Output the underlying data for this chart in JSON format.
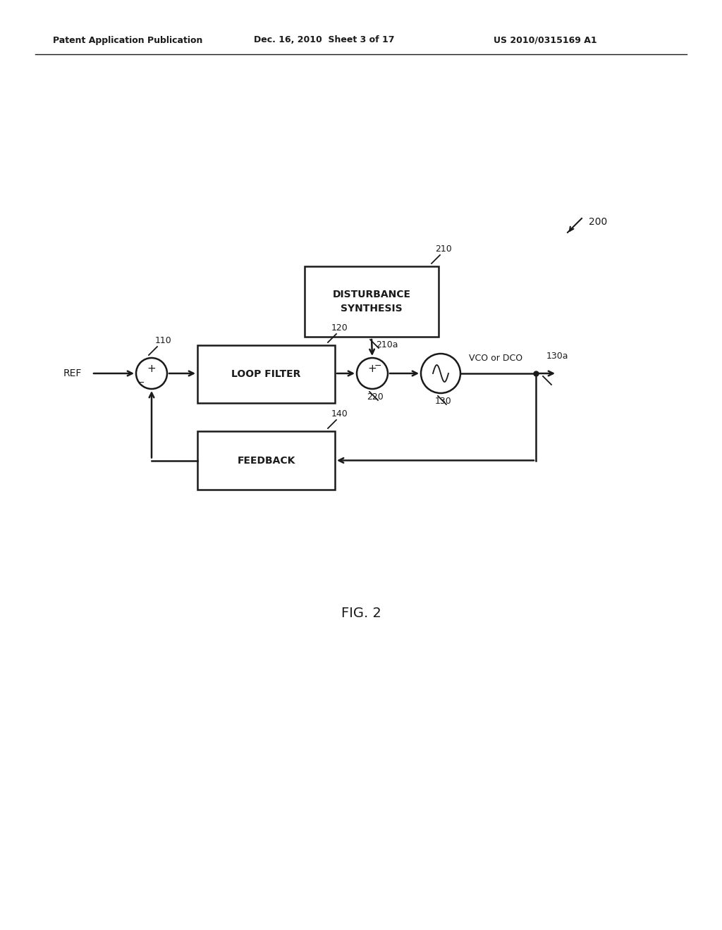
{
  "header_left": "Patent Application Publication",
  "header_mid": "Dec. 16, 2010  Sheet 3 of 17",
  "header_right": "US 2010/0315169 A1",
  "fig_label": "FIG. 2",
  "diagram_label": "200",
  "block_loop_filter": "LOOP FILTER",
  "block_disturbance": "DISTURBANCE\nSYNTHESIS",
  "block_feedback": "FEEDBACK",
  "label_ref": "REF",
  "label_110": "110",
  "label_120": "120",
  "label_210": "210",
  "label_210a": "210a",
  "label_220": "220",
  "label_130": "130",
  "label_130a": "130a",
  "label_140": "140",
  "label_vco": "VCO or DCO",
  "bg_color": "#ffffff",
  "line_color": "#1a1a1a",
  "text_color": "#1a1a1a",
  "box_fill": "#ffffff",
  "box_edge": "#1a1a1a"
}
